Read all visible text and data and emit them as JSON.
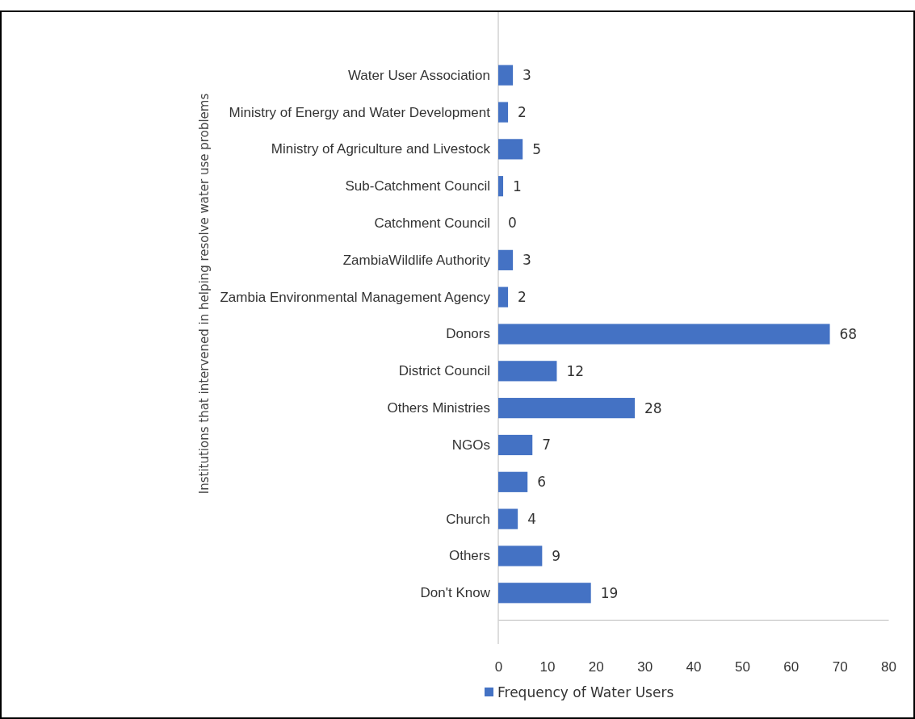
{
  "chart_data": {
    "type": "bar",
    "orientation": "horizontal",
    "ylabel": "Institutions that intervened in helping resolve water use problems",
    "categories": [
      "Water User Association",
      "Ministry of Energy and Water Development",
      "Ministry of Agriculture and Livestock",
      "Sub-Catchment Council",
      "Catchment Council",
      "ZambiaWildlife Authority",
      "Zambia Environmental Management Agency",
      "Donors",
      "District Council",
      "Others Ministries",
      "NGOs",
      null,
      "Church",
      "Others",
      "Don't Know"
    ],
    "series": [
      {
        "name": "Frequency of Water Users",
        "color": "#4472c4",
        "values": [
          3,
          2,
          5,
          1,
          0,
          3,
          2,
          68,
          12,
          28,
          7,
          6,
          4,
          9,
          19
        ]
      }
    ],
    "xlim": [
      0,
      80
    ],
    "xticks": [
      0,
      10,
      20,
      30,
      40,
      50,
      60,
      70,
      80
    ],
    "data_labels": true,
    "grid": false,
    "legend": "bottom"
  }
}
